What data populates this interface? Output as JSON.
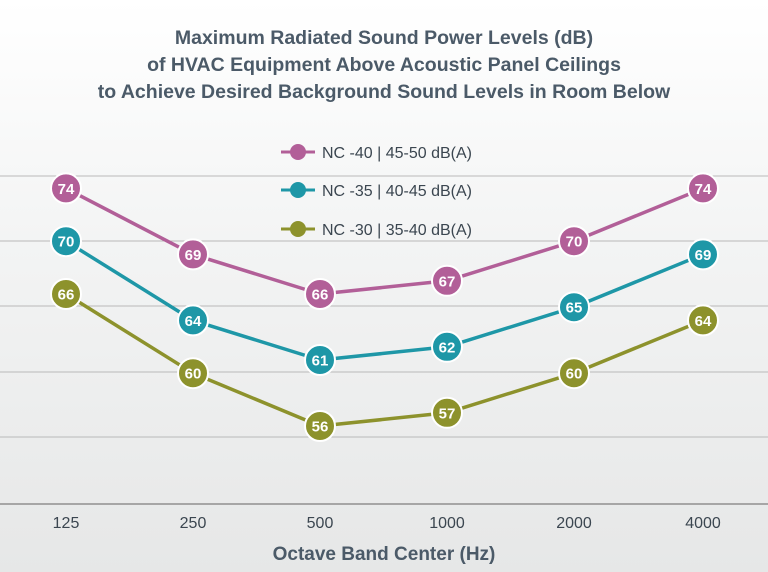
{
  "chart_data": {
    "type": "line",
    "title": [
      "Maximum Radiated Sound Power Levels (dB)",
      "of HVAC Equipment Above Acoustic Panel Ceilings",
      "to Achieve Desired Background Sound Levels in Room Below"
    ],
    "xlabel": "Octave Band Center (Hz)",
    "ylabel": "",
    "categories": [
      "125",
      "250",
      "500",
      "1000",
      "2000",
      "4000"
    ],
    "ylim": [
      46,
      80
    ],
    "grid": true,
    "legend_position": "top-center",
    "series": [
      {
        "name": "NC -40 | 45-50 dB(A)",
        "color": "#b25f98",
        "values": [
          74,
          69,
          66,
          67,
          70,
          74
        ]
      },
      {
        "name": "NC -35 | 40-45 dB(A)",
        "color": "#1e97a7",
        "values": [
          70,
          64,
          61,
          62,
          65,
          69
        ]
      },
      {
        "name": "NC -30 | 35-40 dB(A)",
        "color": "#8d922c",
        "values": [
          66,
          60,
          56,
          57,
          60,
          64
        ]
      }
    ]
  }
}
